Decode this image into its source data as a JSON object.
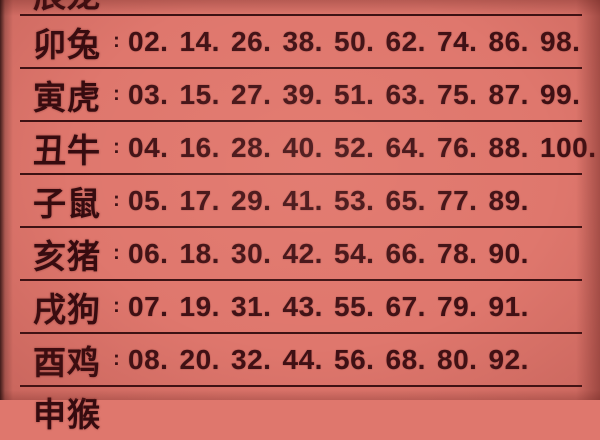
{
  "colors": {
    "background": "#df776d",
    "text": "#3e1014",
    "line": "#2c090c"
  },
  "table": {
    "separator": ":",
    "rows": [
      {
        "label": "辰龙",
        "numbers": [],
        "visibility": "partial-top"
      },
      {
        "label": "卯兔",
        "numbers": [
          "02.",
          "14.",
          "26.",
          "38.",
          "50.",
          "62.",
          "74.",
          "86.",
          "98."
        ]
      },
      {
        "label": "寅虎",
        "numbers": [
          "03.",
          "15.",
          "27.",
          "39.",
          "51.",
          "63.",
          "75.",
          "87.",
          "99."
        ]
      },
      {
        "label": "丑牛",
        "numbers": [
          "04.",
          "16.",
          "28.",
          "40.",
          "52.",
          "64.",
          "76.",
          "88.",
          "100."
        ]
      },
      {
        "label": "子鼠",
        "numbers": [
          "05.",
          "17.",
          "29.",
          "41.",
          "53.",
          "65.",
          "77.",
          "89."
        ]
      },
      {
        "label": "亥猪",
        "numbers": [
          "06.",
          "18.",
          "30.",
          "42.",
          "54.",
          "66.",
          "78.",
          "90."
        ]
      },
      {
        "label": "戌狗",
        "numbers": [
          "07.",
          "19.",
          "31.",
          "43.",
          "55.",
          "67.",
          "79.",
          "91."
        ]
      },
      {
        "label": "酉鸡",
        "numbers": [
          "08.",
          "20.",
          "32.",
          "44.",
          "56.",
          "68.",
          "80.",
          "92."
        ]
      },
      {
        "label": "申猴",
        "numbers": [],
        "visibility": "partial-bottom"
      }
    ]
  }
}
